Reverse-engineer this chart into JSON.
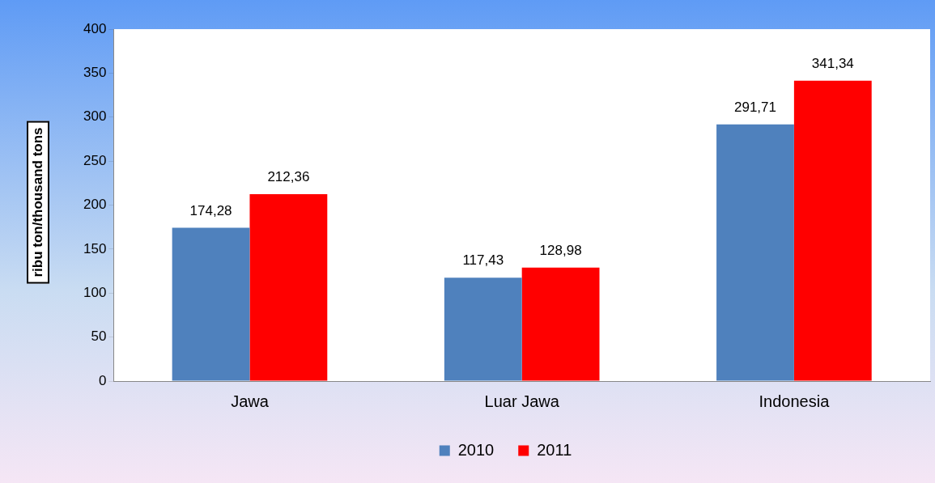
{
  "chart_data": {
    "type": "bar",
    "ylabel": "ribu ton/thousand tons",
    "categories": [
      "Jawa",
      "Luar Jawa",
      "Indonesia"
    ],
    "series": [
      {
        "name": "2010",
        "color": "#4f81bd",
        "values": [
          174.28,
          117.43,
          291.71
        ],
        "value_labels": [
          "174,28",
          "117,43",
          "291,71"
        ]
      },
      {
        "name": "2011",
        "color": "#ff0000",
        "values": [
          212.36,
          128.98,
          341.34
        ],
        "value_labels": [
          "212,36",
          "128,98",
          "341,34"
        ]
      }
    ],
    "ylim": [
      0,
      400
    ],
    "yticks": [
      0,
      50,
      100,
      150,
      200,
      250,
      300,
      350,
      400
    ],
    "grid": false,
    "legend": "bottom"
  }
}
